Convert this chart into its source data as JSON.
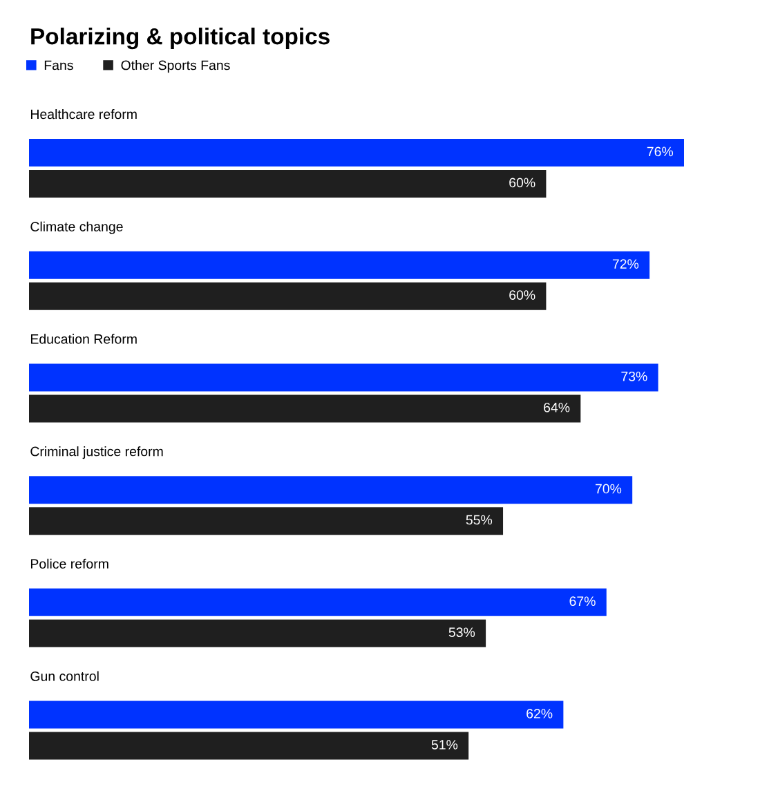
{
  "chart_data": {
    "type": "bar",
    "orientation": "horizontal",
    "title": "Polarizing & political topics",
    "categories": [
      "Healthcare reform",
      "Climate change",
      "Education Reform",
      "Criminal justice reform",
      "Police reform",
      "Gun control"
    ],
    "series": [
      {
        "name": "Fans",
        "color": "#0033ff",
        "values": [
          76,
          72,
          73,
          70,
          67,
          62
        ],
        "value_labels": [
          "76%",
          "72%",
          "73%",
          "70%",
          "67%",
          "62%"
        ]
      },
      {
        "name": "Other Sports Fans",
        "color": "#1f1f1f",
        "values": [
          60,
          60,
          64,
          55,
          53,
          51
        ],
        "value_labels": [
          "60%",
          "60%",
          "64%",
          "55%",
          "53%",
          "51%"
        ]
      }
    ],
    "legend": "top left",
    "tick_labels": "y"
  }
}
